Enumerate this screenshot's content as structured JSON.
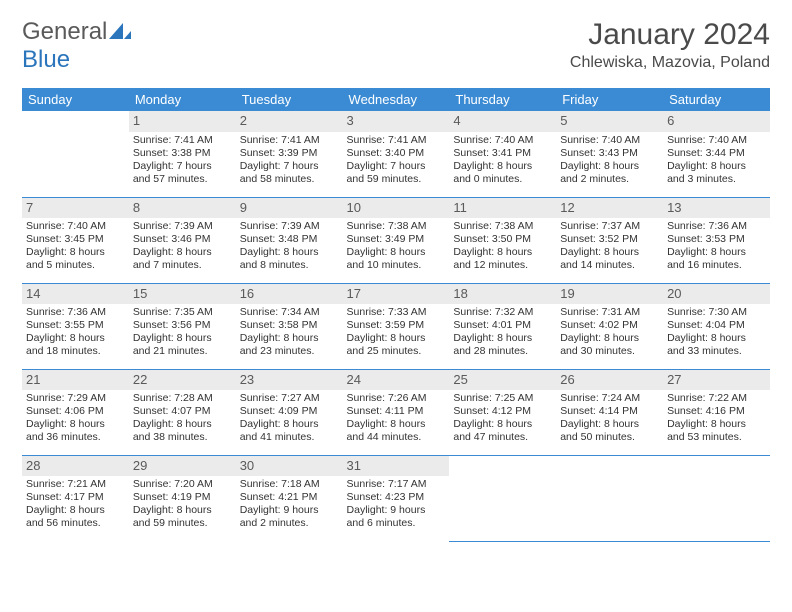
{
  "logo": {
    "text1": "General",
    "text2": "Blue"
  },
  "title": "January 2024",
  "location": "Chlewiska, Mazovia, Poland",
  "colors": {
    "header_bg": "#3b8bd4",
    "header_text": "#ffffff",
    "daynum_bg": "#ebebeb",
    "border": "#3b8bd4",
    "logo_blue": "#2a75bb",
    "logo_gray": "#5a5a5a"
  },
  "days_of_week": [
    "Sunday",
    "Monday",
    "Tuesday",
    "Wednesday",
    "Thursday",
    "Friday",
    "Saturday"
  ],
  "weeks": [
    [
      null,
      {
        "n": "1",
        "sr": "Sunrise: 7:41 AM",
        "ss": "Sunset: 3:38 PM",
        "d1": "Daylight: 7 hours",
        "d2": "and 57 minutes."
      },
      {
        "n": "2",
        "sr": "Sunrise: 7:41 AM",
        "ss": "Sunset: 3:39 PM",
        "d1": "Daylight: 7 hours",
        "d2": "and 58 minutes."
      },
      {
        "n": "3",
        "sr": "Sunrise: 7:41 AM",
        "ss": "Sunset: 3:40 PM",
        "d1": "Daylight: 7 hours",
        "d2": "and 59 minutes."
      },
      {
        "n": "4",
        "sr": "Sunrise: 7:40 AM",
        "ss": "Sunset: 3:41 PM",
        "d1": "Daylight: 8 hours",
        "d2": "and 0 minutes."
      },
      {
        "n": "5",
        "sr": "Sunrise: 7:40 AM",
        "ss": "Sunset: 3:43 PM",
        "d1": "Daylight: 8 hours",
        "d2": "and 2 minutes."
      },
      {
        "n": "6",
        "sr": "Sunrise: 7:40 AM",
        "ss": "Sunset: 3:44 PM",
        "d1": "Daylight: 8 hours",
        "d2": "and 3 minutes."
      }
    ],
    [
      {
        "n": "7",
        "sr": "Sunrise: 7:40 AM",
        "ss": "Sunset: 3:45 PM",
        "d1": "Daylight: 8 hours",
        "d2": "and 5 minutes."
      },
      {
        "n": "8",
        "sr": "Sunrise: 7:39 AM",
        "ss": "Sunset: 3:46 PM",
        "d1": "Daylight: 8 hours",
        "d2": "and 7 minutes."
      },
      {
        "n": "9",
        "sr": "Sunrise: 7:39 AM",
        "ss": "Sunset: 3:48 PM",
        "d1": "Daylight: 8 hours",
        "d2": "and 8 minutes."
      },
      {
        "n": "10",
        "sr": "Sunrise: 7:38 AM",
        "ss": "Sunset: 3:49 PM",
        "d1": "Daylight: 8 hours",
        "d2": "and 10 minutes."
      },
      {
        "n": "11",
        "sr": "Sunrise: 7:38 AM",
        "ss": "Sunset: 3:50 PM",
        "d1": "Daylight: 8 hours",
        "d2": "and 12 minutes."
      },
      {
        "n": "12",
        "sr": "Sunrise: 7:37 AM",
        "ss": "Sunset: 3:52 PM",
        "d1": "Daylight: 8 hours",
        "d2": "and 14 minutes."
      },
      {
        "n": "13",
        "sr": "Sunrise: 7:36 AM",
        "ss": "Sunset: 3:53 PM",
        "d1": "Daylight: 8 hours",
        "d2": "and 16 minutes."
      }
    ],
    [
      {
        "n": "14",
        "sr": "Sunrise: 7:36 AM",
        "ss": "Sunset: 3:55 PM",
        "d1": "Daylight: 8 hours",
        "d2": "and 18 minutes."
      },
      {
        "n": "15",
        "sr": "Sunrise: 7:35 AM",
        "ss": "Sunset: 3:56 PM",
        "d1": "Daylight: 8 hours",
        "d2": "and 21 minutes."
      },
      {
        "n": "16",
        "sr": "Sunrise: 7:34 AM",
        "ss": "Sunset: 3:58 PM",
        "d1": "Daylight: 8 hours",
        "d2": "and 23 minutes."
      },
      {
        "n": "17",
        "sr": "Sunrise: 7:33 AM",
        "ss": "Sunset: 3:59 PM",
        "d1": "Daylight: 8 hours",
        "d2": "and 25 minutes."
      },
      {
        "n": "18",
        "sr": "Sunrise: 7:32 AM",
        "ss": "Sunset: 4:01 PM",
        "d1": "Daylight: 8 hours",
        "d2": "and 28 minutes."
      },
      {
        "n": "19",
        "sr": "Sunrise: 7:31 AM",
        "ss": "Sunset: 4:02 PM",
        "d1": "Daylight: 8 hours",
        "d2": "and 30 minutes."
      },
      {
        "n": "20",
        "sr": "Sunrise: 7:30 AM",
        "ss": "Sunset: 4:04 PM",
        "d1": "Daylight: 8 hours",
        "d2": "and 33 minutes."
      }
    ],
    [
      {
        "n": "21",
        "sr": "Sunrise: 7:29 AM",
        "ss": "Sunset: 4:06 PM",
        "d1": "Daylight: 8 hours",
        "d2": "and 36 minutes."
      },
      {
        "n": "22",
        "sr": "Sunrise: 7:28 AM",
        "ss": "Sunset: 4:07 PM",
        "d1": "Daylight: 8 hours",
        "d2": "and 38 minutes."
      },
      {
        "n": "23",
        "sr": "Sunrise: 7:27 AM",
        "ss": "Sunset: 4:09 PM",
        "d1": "Daylight: 8 hours",
        "d2": "and 41 minutes."
      },
      {
        "n": "24",
        "sr": "Sunrise: 7:26 AM",
        "ss": "Sunset: 4:11 PM",
        "d1": "Daylight: 8 hours",
        "d2": "and 44 minutes."
      },
      {
        "n": "25",
        "sr": "Sunrise: 7:25 AM",
        "ss": "Sunset: 4:12 PM",
        "d1": "Daylight: 8 hours",
        "d2": "and 47 minutes."
      },
      {
        "n": "26",
        "sr": "Sunrise: 7:24 AM",
        "ss": "Sunset: 4:14 PM",
        "d1": "Daylight: 8 hours",
        "d2": "and 50 minutes."
      },
      {
        "n": "27",
        "sr": "Sunrise: 7:22 AM",
        "ss": "Sunset: 4:16 PM",
        "d1": "Daylight: 8 hours",
        "d2": "and 53 minutes."
      }
    ],
    [
      {
        "n": "28",
        "sr": "Sunrise: 7:21 AM",
        "ss": "Sunset: 4:17 PM",
        "d1": "Daylight: 8 hours",
        "d2": "and 56 minutes."
      },
      {
        "n": "29",
        "sr": "Sunrise: 7:20 AM",
        "ss": "Sunset: 4:19 PM",
        "d1": "Daylight: 8 hours",
        "d2": "and 59 minutes."
      },
      {
        "n": "30",
        "sr": "Sunrise: 7:18 AM",
        "ss": "Sunset: 4:21 PM",
        "d1": "Daylight: 9 hours",
        "d2": "and 2 minutes."
      },
      {
        "n": "31",
        "sr": "Sunrise: 7:17 AM",
        "ss": "Sunset: 4:23 PM",
        "d1": "Daylight: 9 hours",
        "d2": "and 6 minutes."
      },
      null,
      null,
      null
    ]
  ]
}
